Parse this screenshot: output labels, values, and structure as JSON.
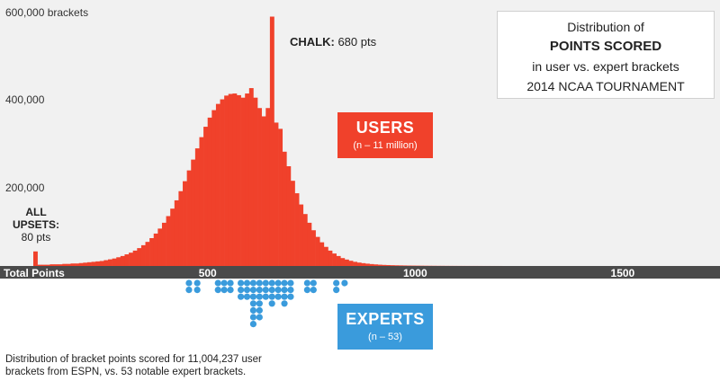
{
  "title": {
    "line1": "Distribution of",
    "line2": "POINTS SCORED",
    "line3": "in user vs. expert brackets",
    "line4": "2014 NCAA TOURNAMENT"
  },
  "users_label": {
    "title": "USERS",
    "subtitle": "(n – 11 million)"
  },
  "experts_label": {
    "title": "EXPERTS",
    "subtitle": "(n – 53)"
  },
  "chalk_annotation": {
    "bold": "CHALK:",
    "text": "680 pts"
  },
  "upsets_annotation": {
    "line1": "ALL",
    "line2": "UPSETS:",
    "line3": "80 pts"
  },
  "footnote": "Distribution of bracket points scored for 11,004,237 user brackets from ESPN, vs. 53 notable expert brackets.",
  "colors": {
    "users": "#f0412b",
    "experts": "#3a9bdc",
    "axis": "#4a4a4a",
    "background": "#f1f1f1"
  },
  "chart_data": {
    "type": "bar",
    "xlabel": "Total Points",
    "ylabel": "brackets",
    "x_ticks": [
      500,
      1000,
      1500
    ],
    "x_range": [
      80,
      1810
    ],
    "y_ticks": [
      {
        "value": 200000,
        "label": "200,000"
      },
      {
        "value": 400000,
        "label": "400,000"
      },
      {
        "value": 600000,
        "label": "600,000 brackets"
      }
    ],
    "ylim": [
      0,
      640000
    ],
    "bin_width": 10,
    "users_series": {
      "name": "USERS",
      "bin_starts": [
        80,
        90,
        100,
        110,
        120,
        130,
        140,
        150,
        160,
        170,
        180,
        190,
        200,
        210,
        220,
        230,
        240,
        250,
        260,
        270,
        280,
        290,
        300,
        310,
        320,
        330,
        340,
        350,
        360,
        370,
        380,
        390,
        400,
        410,
        420,
        430,
        440,
        450,
        460,
        470,
        480,
        490,
        500,
        510,
        520,
        530,
        540,
        550,
        560,
        570,
        580,
        590,
        600,
        610,
        620,
        630,
        640,
        650,
        660,
        670,
        680,
        690,
        700,
        710,
        720,
        730,
        740,
        750,
        760,
        770,
        780,
        790,
        800,
        810,
        820,
        830,
        840,
        850,
        860,
        870,
        880,
        890,
        900,
        910,
        920,
        930,
        940,
        950,
        960,
        970,
        980,
        990,
        1000,
        1010,
        1020,
        1030,
        1040,
        1050,
        1060,
        1070,
        1080,
        1090,
        1100,
        1110,
        1120,
        1130,
        1140,
        1150,
        1160,
        1170,
        1180,
        1190,
        1200
      ],
      "values": [
        35000,
        3000,
        3000,
        3000,
        4000,
        4000,
        4000,
        5000,
        5000,
        6000,
        6000,
        7000,
        8000,
        9000,
        10000,
        11000,
        12000,
        14000,
        16000,
        18000,
        21000,
        24000,
        28000,
        32000,
        37000,
        43000,
        50000,
        58000,
        67000,
        78000,
        90000,
        104000,
        120000,
        138000,
        158000,
        180000,
        204000,
        230000,
        256000,
        283000,
        310000,
        335000,
        357000,
        375000,
        390000,
        401000,
        410000,
        414000,
        415000,
        411000,
        405000,
        415000,
        428000,
        405000,
        380000,
        360000,
        380000,
        600000,
        345000,
        330000,
        275000,
        240000,
        205000,
        175000,
        148000,
        125000,
        104000,
        86000,
        70000,
        57000,
        46000,
        37000,
        30000,
        24000,
        19000,
        15500,
        12500,
        10000,
        8200,
        6800,
        5600,
        4600,
        3800,
        3100,
        2600,
        2200,
        1900,
        1600,
        1400,
        1200,
        1000,
        900,
        800,
        700,
        600,
        520,
        450,
        400,
        350,
        300,
        260,
        230,
        200,
        180,
        160,
        140,
        120,
        100,
        90,
        80,
        70,
        60,
        50
      ]
    },
    "experts_series": {
      "name": "EXPERTS",
      "bin_width": 10,
      "bins": [
        {
          "x": 455,
          "count": 2
        },
        {
          "x": 475,
          "count": 2
        },
        {
          "x": 525,
          "count": 2
        },
        {
          "x": 540,
          "count": 2
        },
        {
          "x": 555,
          "count": 2
        },
        {
          "x": 580,
          "count": 3
        },
        {
          "x": 595,
          "count": 3
        },
        {
          "x": 610,
          "count": 7
        },
        {
          "x": 625,
          "count": 6
        },
        {
          "x": 640,
          "count": 3
        },
        {
          "x": 655,
          "count": 4
        },
        {
          "x": 670,
          "count": 3
        },
        {
          "x": 685,
          "count": 4
        },
        {
          "x": 700,
          "count": 3
        },
        {
          "x": 740,
          "count": 2
        },
        {
          "x": 755,
          "count": 2
        },
        {
          "x": 810,
          "count": 2
        },
        {
          "x": 830,
          "count": 1
        }
      ]
    }
  }
}
